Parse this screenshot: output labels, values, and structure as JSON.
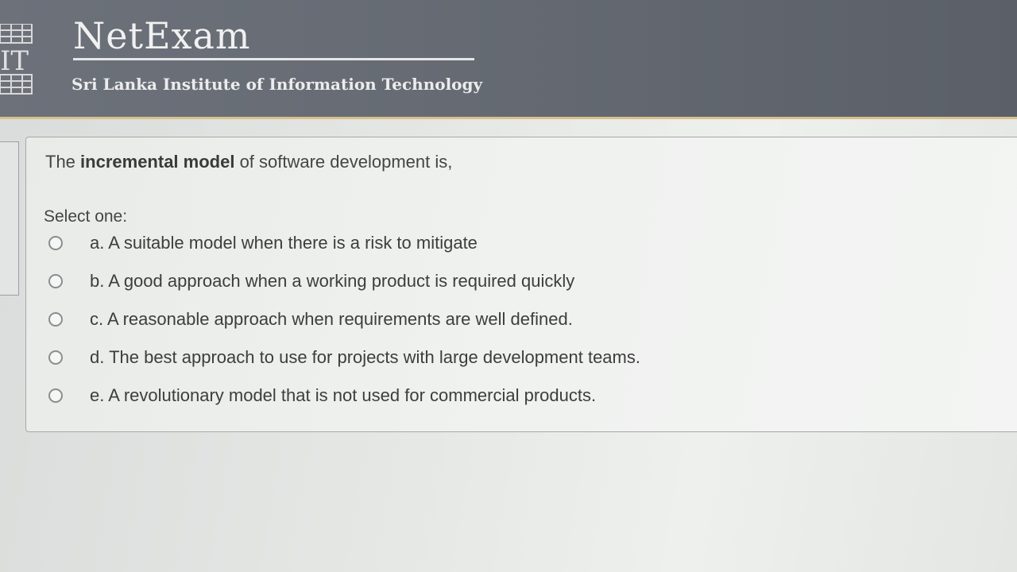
{
  "header": {
    "brand_title": "NetExam",
    "brand_subtitle": "Sri Lanka Institute of Information Technology",
    "logo_text": "IT",
    "colors": {
      "header_bg": "#666b74",
      "accent_border": "#d9c08a"
    }
  },
  "question": {
    "text_prefix": "The",
    "emphasis": "incremental model",
    "text_suffix": "of software development is,",
    "select_label": "Select one:",
    "options": [
      {
        "label": "a. A suitable model when there is a risk to mitigate"
      },
      {
        "label": "b. A good approach when a working product is required quickly"
      },
      {
        "label": "c. A reasonable approach when requirements are well defined."
      },
      {
        "label": "d. The best approach to use for projects with large development teams."
      },
      {
        "label": "e. A revolutionary model that is not used for commercial products."
      }
    ]
  }
}
